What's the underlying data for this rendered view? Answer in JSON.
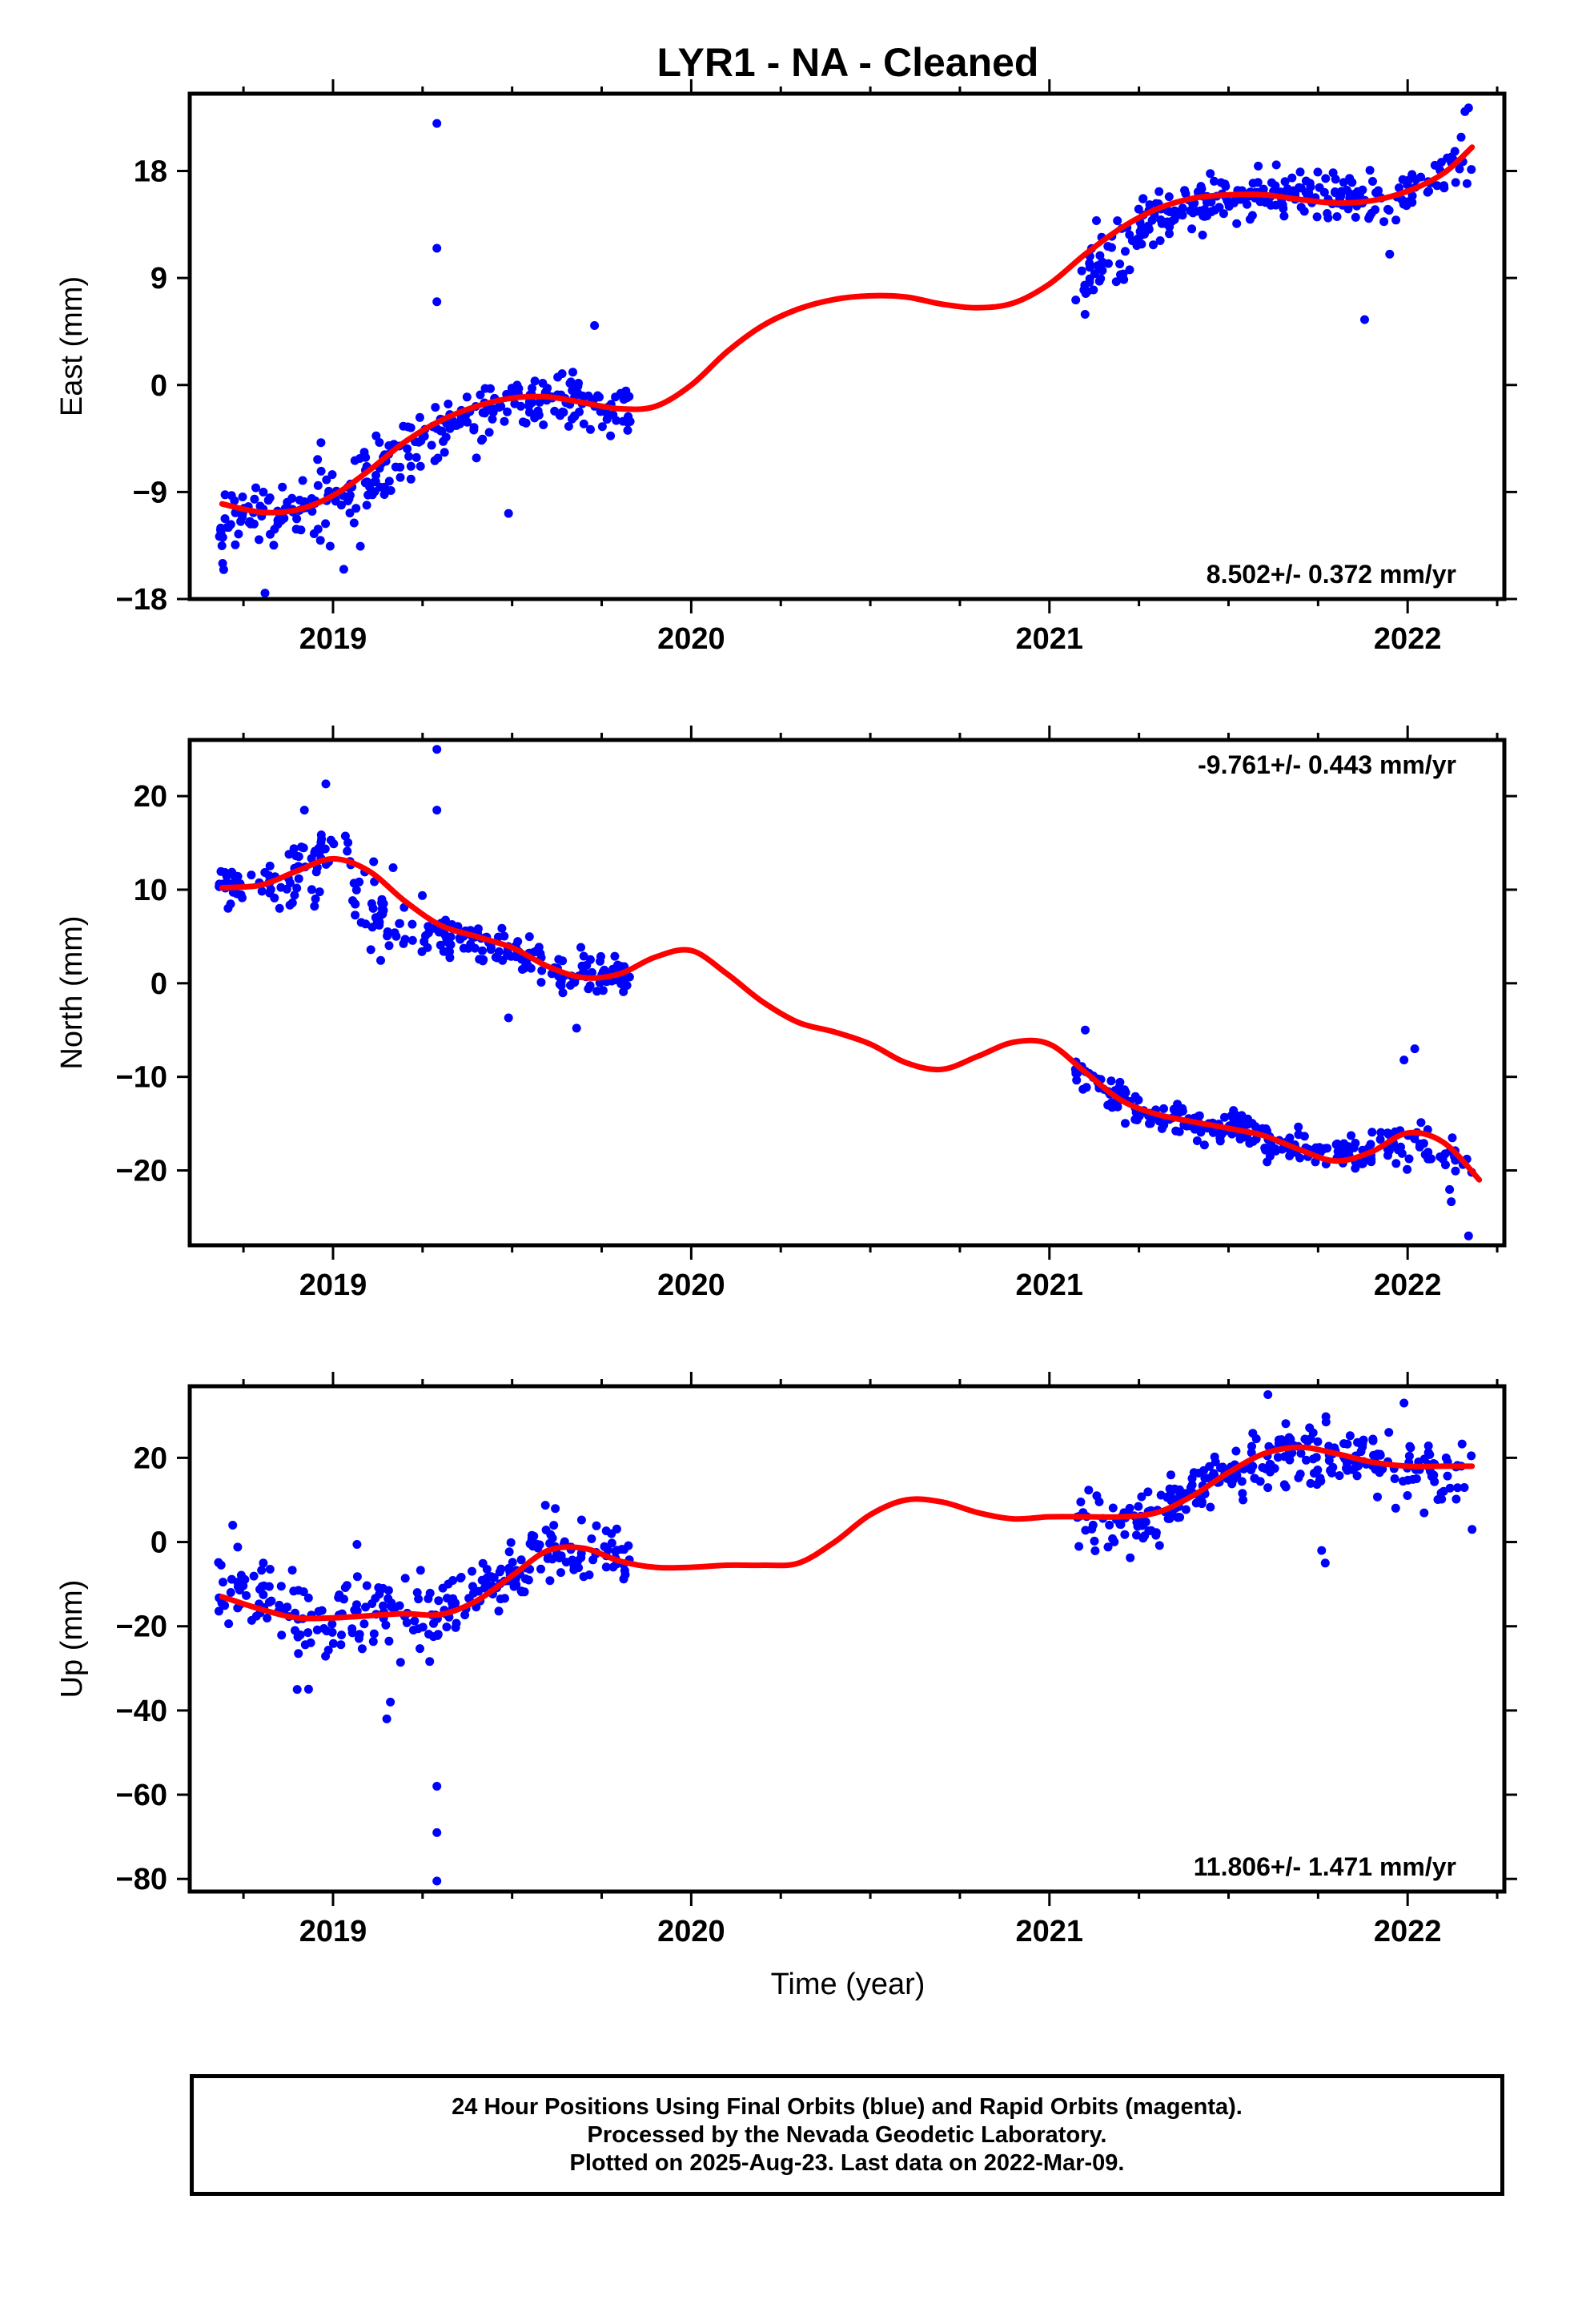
{
  "figure": {
    "title": "LYR1  - NA - Cleaned",
    "xlabel": "Time (year)",
    "caption": [
      "24 Hour Positions Using Final Orbits (blue) and Rapid Orbits (magenta).",
      "Processed by the Nevada Geodetic Laboratory.",
      "Plotted on 2025-Aug-23. Last data on 2022-Mar-09."
    ]
  },
  "colors": {
    "points": "#0000ff",
    "fit": "#ff0000",
    "axes": "#000000"
  },
  "chart_data": [
    {
      "type": "scatter",
      "component": "East",
      "ylabel": "East (mm)",
      "rate_label": "8.502+/- 0.372 mm/yr",
      "rate_position": "bottom-right",
      "xlim": [
        2018.6,
        2022.27
      ],
      "ylim": [
        -18,
        24.5
      ],
      "xticks": [
        2019,
        2020,
        2021,
        2022
      ],
      "yticks": [
        18,
        9,
        0,
        -9,
        -18
      ],
      "grid": false,
      "points_clusters": [
        {
          "x": [
            2018.68,
            2018.78
          ],
          "y": [
            -12.5,
            -9.5
          ],
          "spread": 2.3,
          "n": 30
        },
        {
          "x": [
            2018.78,
            2018.95
          ],
          "y": [
            -11.0,
            -10.5
          ],
          "spread": 2.5,
          "n": 40
        },
        {
          "x": [
            2018.95,
            2019.1
          ],
          "y": [
            -10.0,
            -8.0
          ],
          "spread": 2.5,
          "n": 40
        },
        {
          "x": [
            2019.1,
            2019.3
          ],
          "y": [
            -7.5,
            -4.0
          ],
          "spread": 2.2,
          "n": 50
        },
        {
          "x": [
            2019.3,
            2019.55
          ],
          "y": [
            -3.5,
            -1.0
          ],
          "spread": 1.8,
          "n": 70
        },
        {
          "x": [
            2019.55,
            2019.83
          ],
          "y": [
            -1.0,
            -2.0
          ],
          "spread": 1.8,
          "n": 75
        },
        {
          "x": [
            2021.07,
            2021.25
          ],
          "y": [
            8.0,
            12.0
          ],
          "spread": 2.5,
          "n": 45
        },
        {
          "x": [
            2021.25,
            2021.55
          ],
          "y": [
            13.5,
            16.5
          ],
          "spread": 1.6,
          "n": 90
        },
        {
          "x": [
            2021.55,
            2021.95
          ],
          "y": [
            16.0,
            15.5
          ],
          "spread": 1.7,
          "n": 110
        },
        {
          "x": [
            2021.95,
            2022.18
          ],
          "y": [
            15.5,
            19.0
          ],
          "spread": 1.6,
          "n": 40
        }
      ],
      "outliers": [
        {
          "x": 2019.29,
          "y": 22.0
        },
        {
          "x": 2019.29,
          "y": 11.5
        },
        {
          "x": 2019.29,
          "y": 7.0
        },
        {
          "x": 2019.49,
          "y": -10.8
        },
        {
          "x": 2018.81,
          "y": -17.5
        },
        {
          "x": 2019.03,
          "y": -15.5
        },
        {
          "x": 2021.88,
          "y": 5.5
        },
        {
          "x": 2022.16,
          "y": 23.0
        },
        {
          "x": 2022.17,
          "y": 23.3
        },
        {
          "x": 2019.73,
          "y": 5.0
        },
        {
          "x": 2021.95,
          "y": 11.0
        }
      ],
      "fit": {
        "x": [
          2018.69,
          2018.8,
          2018.9,
          2019.0,
          2019.1,
          2019.2,
          2019.3,
          2019.4,
          2019.5,
          2019.6,
          2019.7,
          2019.8,
          2019.9,
          2020.0,
          2020.1,
          2020.2,
          2020.3,
          2020.4,
          2020.5,
          2020.6,
          2020.7,
          2020.8,
          2020.9,
          2021.0,
          2021.1,
          2021.2,
          2021.3,
          2021.4,
          2021.5,
          2021.6,
          2021.7,
          2021.8,
          2021.9,
          2022.0,
          2022.1,
          2022.18
        ],
        "y": [
          -10.0,
          -10.7,
          -10.5,
          -9.3,
          -7.2,
          -4.8,
          -3.0,
          -1.8,
          -1.1,
          -1.0,
          -1.5,
          -2.0,
          -1.8,
          0.0,
          2.8,
          5.0,
          6.4,
          7.2,
          7.5,
          7.4,
          6.8,
          6.5,
          6.9,
          8.5,
          11.0,
          13.2,
          14.8,
          15.7,
          16.0,
          16.0,
          15.6,
          15.3,
          15.5,
          16.3,
          17.8,
          20.0
        ]
      }
    },
    {
      "type": "scatter",
      "component": "North",
      "ylabel": "North (mm)",
      "rate_label": "-9.761+/- 0.443 mm/yr",
      "rate_position": "top-right",
      "xlim": [
        2018.6,
        2022.27
      ],
      "ylim": [
        -28,
        26
      ],
      "xticks": [
        2019,
        2020,
        2021,
        2022
      ],
      "yticks": [
        20,
        10,
        0,
        -10,
        -20
      ],
      "grid": false,
      "points_clusters": [
        {
          "x": [
            2018.68,
            2018.85
          ],
          "y": [
            10.5,
            11.0
          ],
          "spread": 1.6,
          "n": 40
        },
        {
          "x": [
            2018.85,
            2019.05
          ],
          "y": [
            11.5,
            15.0
          ],
          "spread": 3.0,
          "n": 45
        },
        {
          "x": [
            2019.05,
            2019.25
          ],
          "y": [
            9.0,
            6.5
          ],
          "spread": 3.5,
          "n": 45
        },
        {
          "x": [
            2019.25,
            2019.55
          ],
          "y": [
            5.5,
            3.0
          ],
          "spread": 1.8,
          "n": 80
        },
        {
          "x": [
            2019.55,
            2019.83
          ],
          "y": [
            2.0,
            0.5
          ],
          "spread": 1.8,
          "n": 70
        },
        {
          "x": [
            2021.07,
            2021.25
          ],
          "y": [
            -9.0,
            -13.5
          ],
          "spread": 1.8,
          "n": 45
        },
        {
          "x": [
            2021.25,
            2021.6
          ],
          "y": [
            -14.0,
            -16.0
          ],
          "spread": 1.3,
          "n": 100
        },
        {
          "x": [
            2021.6,
            2021.9
          ],
          "y": [
            -17.0,
            -18.5
          ],
          "spread": 1.3,
          "n": 80
        },
        {
          "x": [
            2021.9,
            2022.18
          ],
          "y": [
            -17.0,
            -19.0
          ],
          "spread": 2.0,
          "n": 50
        }
      ],
      "outliers": [
        {
          "x": 2019.29,
          "y": 25.0
        },
        {
          "x": 2019.29,
          "y": 18.5
        },
        {
          "x": 2019.49,
          "y": -3.7
        },
        {
          "x": 2019.68,
          "y": -4.8
        },
        {
          "x": 2021.1,
          "y": -5.0
        },
        {
          "x": 2022.02,
          "y": -7.0
        },
        {
          "x": 2022.17,
          "y": -27.0
        },
        {
          "x": 2021.99,
          "y": -8.2
        },
        {
          "x": 2018.92,
          "y": 18.5
        },
        {
          "x": 2018.98,
          "y": 21.3
        }
      ],
      "fit": {
        "x": [
          2018.69,
          2018.8,
          2018.9,
          2019.0,
          2019.1,
          2019.2,
          2019.3,
          2019.4,
          2019.5,
          2019.6,
          2019.7,
          2019.8,
          2019.9,
          2020.0,
          2020.1,
          2020.2,
          2020.3,
          2020.4,
          2020.5,
          2020.6,
          2020.7,
          2020.8,
          2020.9,
          2021.0,
          2021.1,
          2021.2,
          2021.3,
          2021.4,
          2021.5,
          2021.6,
          2021.7,
          2021.8,
          2021.9,
          2022.0,
          2022.1,
          2022.2
        ],
        "y": [
          10.2,
          10.5,
          12.0,
          13.3,
          12.0,
          8.8,
          6.2,
          5.0,
          3.8,
          1.8,
          0.6,
          1.0,
          2.8,
          3.5,
          1.0,
          -2.0,
          -4.2,
          -5.2,
          -6.5,
          -8.5,
          -9.2,
          -7.8,
          -6.3,
          -6.5,
          -9.5,
          -12.5,
          -14.0,
          -14.8,
          -15.5,
          -16.3,
          -17.8,
          -19.0,
          -18.0,
          -16.0,
          -17.0,
          -21.0
        ]
      }
    },
    {
      "type": "scatter",
      "component": "Up",
      "ylabel": "Up (mm)",
      "rate_label": "11.806+/- 1.471 mm/yr",
      "rate_position": "bottom-right",
      "xlim": [
        2018.6,
        2022.27
      ],
      "ylim": [
        -83,
        37
      ],
      "xticks": [
        2019,
        2020,
        2021,
        2022
      ],
      "yticks": [
        20,
        0,
        -20,
        -40,
        -60,
        -80
      ],
      "grid": false,
      "points_clusters": [
        {
          "x": [
            2018.68,
            2018.85
          ],
          "y": [
            -10.0,
            -15.0
          ],
          "spread": 8.0,
          "n": 40
        },
        {
          "x": [
            2018.85,
            2019.1
          ],
          "y": [
            -18.0,
            -17.0
          ],
          "spread": 8.0,
          "n": 55
        },
        {
          "x": [
            2019.1,
            2019.3
          ],
          "y": [
            -17.0,
            -17.0
          ],
          "spread": 7.0,
          "n": 45
        },
        {
          "x": [
            2019.3,
            2019.55
          ],
          "y": [
            -16.0,
            -6.0
          ],
          "spread": 5.0,
          "n": 70
        },
        {
          "x": [
            2019.55,
            2019.83
          ],
          "y": [
            -2.0,
            -4.0
          ],
          "spread": 6.0,
          "n": 70
        },
        {
          "x": [
            2021.07,
            2021.3
          ],
          "y": [
            4.0,
            6.0
          ],
          "spread": 7.0,
          "n": 55
        },
        {
          "x": [
            2021.3,
            2021.65
          ],
          "y": [
            8.0,
            21.0
          ],
          "spread": 6.0,
          "n": 100
        },
        {
          "x": [
            2021.65,
            2021.95
          ],
          "y": [
            21.0,
            19.0
          ],
          "spread": 6.0,
          "n": 80
        },
        {
          "x": [
            2021.95,
            2022.18
          ],
          "y": [
            18.0,
            17.0
          ],
          "spread": 6.5,
          "n": 45
        }
      ],
      "outliers": [
        {
          "x": 2019.29,
          "y": -58.0
        },
        {
          "x": 2019.29,
          "y": -69.0
        },
        {
          "x": 2019.29,
          "y": -80.5
        },
        {
          "x": 2019.15,
          "y": -42.0
        },
        {
          "x": 2019.16,
          "y": -38.0
        },
        {
          "x": 2018.9,
          "y": -35.0
        },
        {
          "x": 2021.77,
          "y": -5.0
        },
        {
          "x": 2021.76,
          "y": -2.0
        },
        {
          "x": 2021.61,
          "y": 35.0
        },
        {
          "x": 2021.99,
          "y": 33.0
        },
        {
          "x": 2022.18,
          "y": 3.0
        },
        {
          "x": 2018.72,
          "y": 4.0
        }
      ],
      "fit": {
        "x": [
          2018.69,
          2018.8,
          2018.9,
          2019.0,
          2019.1,
          2019.2,
          2019.3,
          2019.4,
          2019.5,
          2019.6,
          2019.7,
          2019.8,
          2019.9,
          2020.0,
          2020.1,
          2020.2,
          2020.3,
          2020.4,
          2020.5,
          2020.6,
          2020.7,
          2020.8,
          2020.9,
          2021.0,
          2021.1,
          2021.2,
          2021.3,
          2021.4,
          2021.5,
          2021.6,
          2021.7,
          2021.8,
          2021.9,
          2022.0,
          2022.1,
          2022.18
        ],
        "y": [
          -13.0,
          -16.0,
          -18.0,
          -18.0,
          -17.5,
          -17.0,
          -17.2,
          -14.0,
          -8.0,
          -2.0,
          -1.5,
          -4.5,
          -6.0,
          -6.0,
          -5.5,
          -5.5,
          -5.0,
          0.0,
          6.5,
          10.0,
          9.5,
          7.0,
          5.5,
          6.0,
          6.0,
          6.0,
          7.0,
          11.0,
          16.5,
          21.0,
          22.5,
          21.0,
          19.0,
          18.0,
          18.0,
          18.0
        ]
      }
    }
  ]
}
